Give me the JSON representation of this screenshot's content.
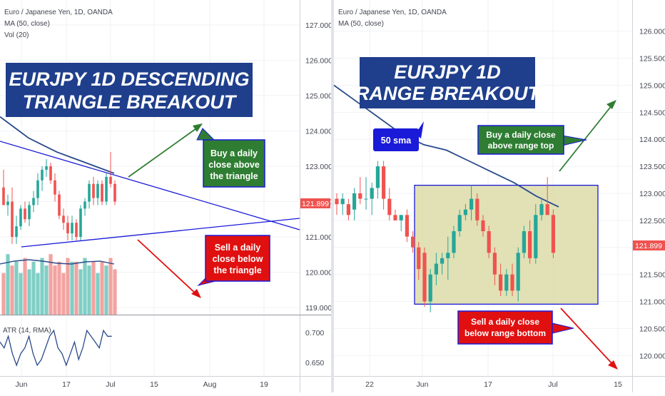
{
  "colors": {
    "up": "#26a69a",
    "down": "#ef5350",
    "ma": "#2a4a8a",
    "trendline": "#1a1ad9",
    "price_badge": "#ef5350",
    "title_box": "#1f3f8c",
    "buy_box": "#2e7d32",
    "sell_box": "#e01010",
    "range_fill": "#dcdca8",
    "range_stroke": "#1a1ad9",
    "atr": "#2a4a8a"
  },
  "left": {
    "legend": [
      "Euro / Japanese Yen, 1D, OANDA",
      "MA (50, close)",
      "Vol (20)"
    ],
    "title_lines": [
      "EURJPY 1D DESCENDING",
      "TRIANGLE BREAKOUT"
    ],
    "buy_lines": [
      "Buy a daily",
      "close above",
      "the triangle"
    ],
    "sell_lines": [
      "Sell a daily",
      "close below",
      "the triangle"
    ],
    "price_badge": "121.899",
    "atr_label": "ATR (14, RMA)",
    "x_labels": [
      "Jun",
      "17",
      "Jul",
      "15",
      "Aug",
      "19"
    ],
    "atr_ticks": [
      "0.700",
      "0.650"
    ]
  },
  "right": {
    "legend": [
      "Euro / Japanese Yen, 1D, OANDA",
      "MA (50, close)"
    ],
    "title_lines": [
      "EURJPY 1D",
      "RANGE BREAKOUT"
    ],
    "sma_label": "50 sma",
    "buy_lines": [
      "Buy a daily close",
      "above range top"
    ],
    "sell_lines": [
      "Sell a daily close",
      "below range bottom"
    ],
    "price_badge": "121.899",
    "x_labels": [
      "22",
      "Jun",
      "17",
      "Jul",
      "15"
    ]
  },
  "chart_data": [
    {
      "type": "candlestick",
      "title": "EURJPY 1D DESCENDING TRIANGLE BREAKOUT",
      "symbol": "Euro / Japanese Yen, 1D, OANDA",
      "ylim": [
        118.8,
        127.3
      ],
      "y_ticks": [
        "127.000",
        "126.000",
        "125.000",
        "124.000",
        "123.000",
        "122.000",
        "121.000",
        "120.000",
        "119.000"
      ],
      "x_labels": [
        "Jun",
        "17",
        "Jul",
        "15",
        "Aug",
        "19"
      ],
      "last_price": 121.899,
      "candles": [
        {
          "o": 122.4,
          "h": 122.9,
          "l": 121.9,
          "c": 121.9
        },
        {
          "o": 121.9,
          "h": 122.2,
          "l": 121.6,
          "c": 122.0
        },
        {
          "o": 122.0,
          "h": 122.4,
          "l": 120.8,
          "c": 121.0
        },
        {
          "o": 121.0,
          "h": 121.6,
          "l": 120.8,
          "c": 121.3
        },
        {
          "o": 121.3,
          "h": 121.9,
          "l": 121.2,
          "c": 121.8
        },
        {
          "o": 121.8,
          "h": 122.0,
          "l": 121.4,
          "c": 121.5
        },
        {
          "o": 121.5,
          "h": 122.0,
          "l": 121.3,
          "c": 121.9
        },
        {
          "o": 121.9,
          "h": 122.3,
          "l": 121.7,
          "c": 122.1
        },
        {
          "o": 122.1,
          "h": 122.8,
          "l": 121.9,
          "c": 122.6
        },
        {
          "o": 122.6,
          "h": 123.0,
          "l": 122.3,
          "c": 122.9
        },
        {
          "o": 122.9,
          "h": 123.2,
          "l": 122.7,
          "c": 123.0
        },
        {
          "o": 123.0,
          "h": 123.1,
          "l": 122.5,
          "c": 122.6
        },
        {
          "o": 122.6,
          "h": 122.8,
          "l": 122.0,
          "c": 122.2
        },
        {
          "o": 122.2,
          "h": 122.3,
          "l": 121.5,
          "c": 121.6
        },
        {
          "o": 121.6,
          "h": 121.8,
          "l": 121.2,
          "c": 121.4
        },
        {
          "o": 121.4,
          "h": 121.6,
          "l": 120.9,
          "c": 121.1
        },
        {
          "o": 121.1,
          "h": 121.6,
          "l": 120.9,
          "c": 121.4
        },
        {
          "o": 121.4,
          "h": 121.5,
          "l": 120.9,
          "c": 121.0
        },
        {
          "o": 121.0,
          "h": 121.9,
          "l": 120.9,
          "c": 121.8
        },
        {
          "o": 121.8,
          "h": 122.1,
          "l": 121.6,
          "c": 122.0
        },
        {
          "o": 122.0,
          "h": 122.6,
          "l": 121.8,
          "c": 122.5
        },
        {
          "o": 122.5,
          "h": 122.7,
          "l": 121.9,
          "c": 122.1
        },
        {
          "o": 122.1,
          "h": 122.6,
          "l": 121.9,
          "c": 122.5
        },
        {
          "o": 122.5,
          "h": 122.6,
          "l": 121.9,
          "c": 122.0
        },
        {
          "o": 122.0,
          "h": 122.8,
          "l": 121.9,
          "c": 122.7
        },
        {
          "o": 122.7,
          "h": 123.4,
          "l": 122.4,
          "c": 122.5
        },
        {
          "o": 122.5,
          "h": 122.6,
          "l": 121.9,
          "c": 122.0
        }
      ],
      "ma50": [
        124.4,
        124.1,
        123.8,
        123.6,
        123.4,
        123.25,
        123.1,
        122.95,
        122.8
      ],
      "volume": [
        0.55,
        0.8,
        0.65,
        0.7,
        0.55,
        0.75,
        0.6,
        0.7,
        0.55,
        0.75,
        0.65,
        0.8,
        0.65,
        0.7,
        0.55,
        0.75,
        0.7,
        0.7,
        0.6,
        0.75,
        0.65,
        0.7,
        0.55,
        0.7,
        0.65,
        0.75,
        0.6
      ],
      "atr": [
        0.68,
        0.67,
        0.69,
        0.66,
        0.64,
        0.66,
        0.67,
        0.69,
        0.66,
        0.64,
        0.65,
        0.67,
        0.69,
        0.7,
        0.67,
        0.66,
        0.64,
        0.66,
        0.68,
        0.65,
        0.67,
        0.7,
        0.69,
        0.68,
        0.67,
        0.7,
        0.69,
        0.69
      ],
      "atr_ylim": [
        0.63,
        0.72
      ]
    },
    {
      "type": "candlestick",
      "title": "EURJPY 1D RANGE BREAKOUT",
      "symbol": "Euro / Japanese Yen, 1D, OANDA",
      "ylim": [
        119.7,
        126.3
      ],
      "y_ticks": [
        "126.000",
        "125.500",
        "125.000",
        "124.500",
        "124.000",
        "123.500",
        "123.000",
        "122.500",
        "122.000",
        "121.500",
        "121.000",
        "120.500",
        "120.000"
      ],
      "x_labels": [
        "22",
        "Jun",
        "17",
        "Jul",
        "15"
      ],
      "last_price": 121.899,
      "range_top": 123.15,
      "range_bottom": 120.95,
      "candles": [
        {
          "o": 122.9,
          "h": 123.0,
          "l": 122.6,
          "c": 122.8
        },
        {
          "o": 122.8,
          "h": 123.0,
          "l": 122.6,
          "c": 122.9
        },
        {
          "o": 122.8,
          "h": 122.9,
          "l": 122.5,
          "c": 122.6
        },
        {
          "o": 122.7,
          "h": 123.1,
          "l": 122.5,
          "c": 123.0
        },
        {
          "o": 123.0,
          "h": 123.3,
          "l": 122.8,
          "c": 122.9
        },
        {
          "o": 122.9,
          "h": 123.3,
          "l": 122.7,
          "c": 122.9
        },
        {
          "o": 122.9,
          "h": 123.2,
          "l": 122.6,
          "c": 123.1
        },
        {
          "o": 123.1,
          "h": 123.6,
          "l": 122.9,
          "c": 123.5
        },
        {
          "o": 123.5,
          "h": 123.6,
          "l": 122.7,
          "c": 122.9
        },
        {
          "o": 122.9,
          "h": 123.1,
          "l": 122.5,
          "c": 122.6
        },
        {
          "o": 122.6,
          "h": 122.7,
          "l": 122.5,
          "c": 122.5
        },
        {
          "o": 122.5,
          "h": 122.6,
          "l": 122.3,
          "c": 122.6
        },
        {
          "o": 122.6,
          "h": 122.7,
          "l": 122.1,
          "c": 122.2
        },
        {
          "o": 122.2,
          "h": 122.3,
          "l": 121.9,
          "c": 122.0
        },
        {
          "o": 122.0,
          "h": 122.1,
          "l": 121.4,
          "c": 121.6
        },
        {
          "o": 121.9,
          "h": 122.0,
          "l": 120.9,
          "c": 121.0
        },
        {
          "o": 121.0,
          "h": 121.6,
          "l": 120.8,
          "c": 121.5
        },
        {
          "o": 121.5,
          "h": 121.9,
          "l": 121.3,
          "c": 121.7
        },
        {
          "o": 121.7,
          "h": 121.9,
          "l": 121.5,
          "c": 121.8
        },
        {
          "o": 121.8,
          "h": 122.2,
          "l": 121.4,
          "c": 121.9
        },
        {
          "o": 121.9,
          "h": 122.4,
          "l": 121.8,
          "c": 122.3
        },
        {
          "o": 122.3,
          "h": 122.7,
          "l": 122.2,
          "c": 122.6
        },
        {
          "o": 122.6,
          "h": 122.8,
          "l": 122.5,
          "c": 122.7
        },
        {
          "o": 122.7,
          "h": 123.15,
          "l": 122.5,
          "c": 122.9
        },
        {
          "o": 122.9,
          "h": 123.0,
          "l": 122.4,
          "c": 122.5
        },
        {
          "o": 122.5,
          "h": 122.6,
          "l": 122.2,
          "c": 122.3
        },
        {
          "o": 122.3,
          "h": 122.4,
          "l": 121.8,
          "c": 121.9
        },
        {
          "o": 121.9,
          "h": 122.0,
          "l": 121.3,
          "c": 121.5
        },
        {
          "o": 121.5,
          "h": 121.7,
          "l": 121.1,
          "c": 121.2
        },
        {
          "o": 121.2,
          "h": 121.6,
          "l": 121.1,
          "c": 121.5
        },
        {
          "o": 121.5,
          "h": 121.7,
          "l": 121.1,
          "c": 121.2
        },
        {
          "o": 121.2,
          "h": 122.0,
          "l": 121.0,
          "c": 121.9
        },
        {
          "o": 121.9,
          "h": 122.4,
          "l": 121.8,
          "c": 122.3
        },
        {
          "o": 122.3,
          "h": 122.5,
          "l": 121.7,
          "c": 121.8
        },
        {
          "o": 121.8,
          "h": 122.8,
          "l": 121.7,
          "c": 122.6
        },
        {
          "o": 122.6,
          "h": 122.9,
          "l": 122.5,
          "c": 122.8
        },
        {
          "o": 122.8,
          "h": 123.3,
          "l": 122.6,
          "c": 122.6
        },
        {
          "o": 122.6,
          "h": 122.7,
          "l": 121.8,
          "c": 121.9
        }
      ],
      "ma50": [
        125.0,
        124.7,
        124.4,
        124.1,
        123.9,
        123.8,
        123.6,
        123.4,
        123.2,
        122.95,
        122.75
      ]
    }
  ]
}
